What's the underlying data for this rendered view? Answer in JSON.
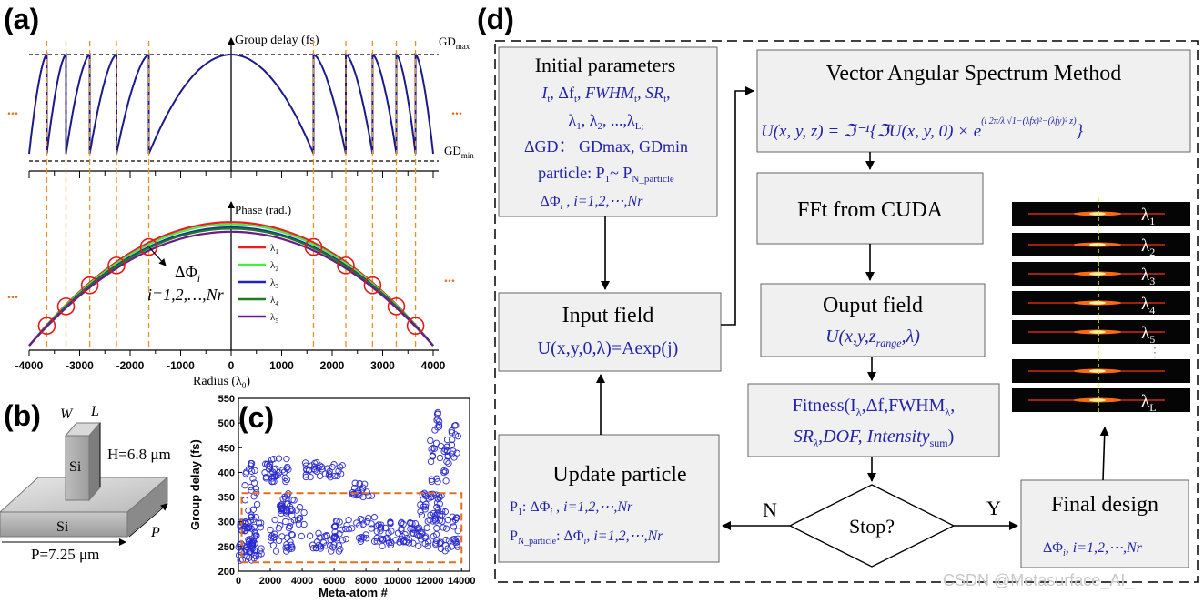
{
  "panel_labels": {
    "a": "(a)",
    "b": "(b)",
    "c": "(c)",
    "d": "(d)"
  },
  "panel_a": {
    "gd_axis_label": "Group delay (fs)",
    "gd_max": "GD",
    "gd_max_sub": "max",
    "gd_min": "GD",
    "gd_min_sub": "min",
    "phase_axis_label": "Phase (rad.)",
    "x_ticks": [
      "-4000",
      "-3000",
      "-2000",
      "-1000",
      "0",
      "1000",
      "2000",
      "3000",
      "4000"
    ],
    "x_label": "Radius (λ",
    "x_label_sub": "0",
    "x_label_close": ")",
    "ellipsis": "...",
    "delta_phi": "ΔΦ",
    "delta_phi_sub": "i",
    "index_range": "i=1,2,…,Nr",
    "legend": [
      {
        "label": "λ",
        "sub": "1",
        "color": "#ee1c1c"
      },
      {
        "label": "λ",
        "sub": "2",
        "color": "#44ee44"
      },
      {
        "label": "λ",
        "sub": "3",
        "color": "#2222bb"
      },
      {
        "label": "λ",
        "sub": "4",
        "color": "#1f7a1f"
      },
      {
        "label": "λ",
        "sub": "5",
        "color": "#6a1a8a"
      }
    ]
  },
  "panel_b": {
    "w": "W",
    "l": "L",
    "si_pillar": "Si",
    "si_base": "Si",
    "h": "H=6.8 μm",
    "p_side": "P",
    "p_bottom": "P=7.25 μm"
  },
  "chart_data": {
    "type": "scatter",
    "xlabel": "Meta-atom #",
    "ylabel": "Group delay (fs)",
    "xlim": [
      0,
      14500
    ],
    "ylim": [
      200,
      550
    ],
    "x_ticks": [
      "0",
      "2000",
      "4000",
      "6000",
      "8000",
      "10000",
      "12000",
      "14000"
    ],
    "y_ticks": [
      "200",
      "250",
      "300",
      "350",
      "400",
      "450",
      "500",
      "550"
    ],
    "selection_box": {
      "x": [
        200,
        14000
      ],
      "y": [
        218,
        358
      ]
    }
  },
  "flowchart": {
    "initial": {
      "title": "Initial parameters",
      "l1": "I",
      "l1s": "t",
      "l1b": ", Δf",
      "l1bs": "t",
      "l1c": ", FWHM",
      "l1cs": "t",
      "l1d": ", SR",
      "l1ds": "t",
      "l1e": ",",
      "l2": "λ",
      "l2s": "1",
      "l2b": ", λ",
      "l2bs": "2",
      "l2c": ", ...,λ",
      "l2cs": "L;",
      "l3": "ΔGD： GDmax, GDmin",
      "l4": "particle: P",
      "l4s": "1",
      "l4b": "~ P",
      "l4bs": "N_particle",
      "l5": "ΔΦ",
      "l5s": "i",
      "l5b": " ,  i=1,2,⋯,Nr"
    },
    "vasm": {
      "title": "Vector Angular Spectrum Method",
      "formula": "U(x, y, z) = ℑ⁻¹{ℑU(x, y, 0) × e",
      "exponent": "(i 2π/λ √1−(λfx)²−(λfy)² z)",
      "close": "}"
    },
    "fft": "FFt from CUDA",
    "input": {
      "title": "Input field",
      "formula": "U(x,y,0,λ)=Aexp(j)"
    },
    "output": {
      "title": "Ouput field",
      "f1": "U(x,y,z",
      "f1s": "range",
      "f1b": ",λ)"
    },
    "fitness": {
      "l1": "Fitness(I",
      "l1s": "λ",
      "l1b": ",Δf,FWHM",
      "l1bs": "λ",
      "l1c": ",",
      "l2": "SR",
      "l2s": "λ",
      "l2b": ",DOF, Intensity",
      "l2bs": "sum",
      "l2c": ")"
    },
    "update": {
      "title": "Update particle",
      "l1": "P",
      "l1s": "1",
      "l1b": ":  ΔΦ",
      "l1bs": "i",
      "l1c": " ,   i=1,2,⋯,Nr",
      "l2": "P",
      "l2s": "N_particle",
      "l2b": ": ΔΦ",
      "l2bs": "i",
      "l2c": ",   i=1,2,⋯,Nr"
    },
    "stop": "Stop?",
    "n": "N",
    "y": "Y",
    "final": {
      "title": "Final design",
      "l1": "ΔΦ",
      "l1s": "i",
      "l1b": ",   i=1,2,⋯,Nr"
    }
  },
  "spectra": [
    {
      "label": "λ",
      "sub": "1"
    },
    {
      "label": "λ",
      "sub": "2"
    },
    {
      "label": "λ",
      "sub": "3"
    },
    {
      "label": "λ",
      "sub": "4"
    },
    {
      "label": "λ",
      "sub": "5"
    },
    {
      "label": "",
      "sub": ""
    },
    {
      "label": "λ",
      "sub": "L"
    }
  ],
  "spectra_ellipsis": "⋮",
  "watermark": "CSDN @Metasurface_AI_"
}
